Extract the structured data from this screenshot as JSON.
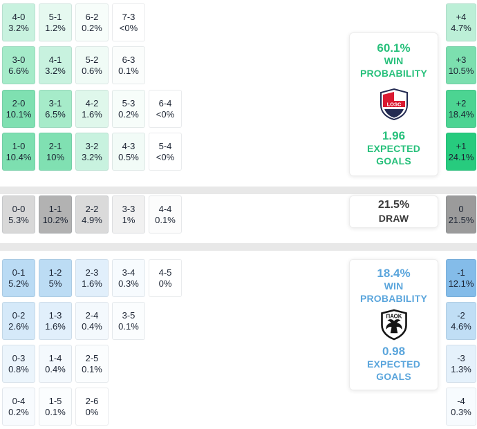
{
  "home": {
    "team": "Lille",
    "crest_text": "LOSC",
    "rows": [
      [
        {
          "score": "4-0",
          "pct": "3.2%",
          "bg": "#c8f2df"
        },
        {
          "score": "5-1",
          "pct": "1.2%",
          "bg": "#e6f9f0"
        },
        {
          "score": "6-2",
          "pct": "0.2%",
          "bg": "#f7fdfa"
        },
        {
          "score": "7-3",
          "pct": "<0%",
          "bg": "#ffffff"
        }
      ],
      [
        {
          "score": "3-0",
          "pct": "6.6%",
          "bg": "#a5ebc9"
        },
        {
          "score": "4-1",
          "pct": "3.2%",
          "bg": "#c8f2df"
        },
        {
          "score": "5-2",
          "pct": "0.6%",
          "bg": "#f0fbf6"
        },
        {
          "score": "6-3",
          "pct": "0.1%",
          "bg": "#fbfdfc"
        }
      ],
      [
        {
          "score": "2-0",
          "pct": "10.1%",
          "bg": "#7fe0b1"
        },
        {
          "score": "3-1",
          "pct": "6.5%",
          "bg": "#a6ebc9"
        },
        {
          "score": "4-2",
          "pct": "1.6%",
          "bg": "#dff7eb"
        },
        {
          "score": "5-3",
          "pct": "0.2%",
          "bg": "#f7fdfa"
        },
        {
          "score": "6-4",
          "pct": "<0%",
          "bg": "#ffffff"
        }
      ],
      [
        {
          "score": "1-0",
          "pct": "10.4%",
          "bg": "#7ddfb0"
        },
        {
          "score": "2-1",
          "pct": "10%",
          "bg": "#80e0b2"
        },
        {
          "score": "3-2",
          "pct": "3.2%",
          "bg": "#c8f2df"
        },
        {
          "score": "4-3",
          "pct": "0.5%",
          "bg": "#f2fbf7"
        },
        {
          "score": "5-4",
          "pct": "<0%",
          "bg": "#ffffff"
        }
      ]
    ],
    "diff": [
      {
        "label": "+4",
        "pct": "4.7%",
        "bg": "#bcefd7"
      },
      {
        "label": "+3",
        "pct": "10.5%",
        "bg": "#7cdfaf"
      },
      {
        "label": "+2",
        "pct": "18.4%",
        "bg": "#4cd492"
      },
      {
        "label": "+1",
        "pct": "24.1%",
        "bg": "#27cb7e"
      }
    ],
    "panel": {
      "win_pct": "60.1%",
      "win_label": "WIN PROBABILITY",
      "xg": "1.96",
      "xg_label": "EXPECTED GOALS",
      "accent": "#27c07b"
    }
  },
  "draw": {
    "cells": [
      {
        "score": "0-0",
        "pct": "5.3%",
        "bg": "#d8d8d8"
      },
      {
        "score": "1-1",
        "pct": "10.2%",
        "bg": "#b2b2b2"
      },
      {
        "score": "2-2",
        "pct": "4.9%",
        "bg": "#dadada"
      },
      {
        "score": "3-3",
        "pct": "1%",
        "bg": "#f1f1f1"
      },
      {
        "score": "4-4",
        "pct": "0.1%",
        "bg": "#fcfcfc"
      }
    ],
    "diff": {
      "label": "0",
      "pct": "21.5%",
      "bg": "#9b9b9b"
    },
    "panel": {
      "pct": "21.5%",
      "label": "DRAW",
      "accent": "#3a3a3a"
    }
  },
  "away": {
    "team": "PAOK",
    "crest_text": "ΠΑΟΚ",
    "rows": [
      [
        {
          "score": "0-1",
          "pct": "5.2%",
          "bg": "#badbf4"
        },
        {
          "score": "1-2",
          "pct": "5%",
          "bg": "#bcdcf4"
        },
        {
          "score": "2-3",
          "pct": "1.6%",
          "bg": "#e1effb"
        },
        {
          "score": "3-4",
          "pct": "0.3%",
          "bg": "#f7fbfe"
        },
        {
          "score": "4-5",
          "pct": "0%",
          "bg": "#ffffff"
        }
      ],
      [
        {
          "score": "0-2",
          "pct": "2.6%",
          "bg": "#d5e9f9"
        },
        {
          "score": "1-3",
          "pct": "1.6%",
          "bg": "#e1effb"
        },
        {
          "score": "2-4",
          "pct": "0.4%",
          "bg": "#f4f9fd"
        },
        {
          "score": "3-5",
          "pct": "0.1%",
          "bg": "#fbfdfe"
        }
      ],
      [
        {
          "score": "0-3",
          "pct": "0.8%",
          "bg": "#ecf5fc"
        },
        {
          "score": "1-4",
          "pct": "0.4%",
          "bg": "#f4f9fd"
        },
        {
          "score": "2-5",
          "pct": "0.1%",
          "bg": "#fbfdfe"
        }
      ],
      [
        {
          "score": "0-4",
          "pct": "0.2%",
          "bg": "#f8fbfe"
        },
        {
          "score": "1-5",
          "pct": "0.1%",
          "bg": "#fbfdfe"
        },
        {
          "score": "2-6",
          "pct": "0%",
          "bg": "#ffffff"
        }
      ]
    ],
    "diff": [
      {
        "label": "-1",
        "pct": "12.1%",
        "bg": "#84bce9"
      },
      {
        "label": "-2",
        "pct": "4.6%",
        "bg": "#c0def5"
      },
      {
        "label": "-3",
        "pct": "1.3%",
        "bg": "#e5f1fb"
      },
      {
        "label": "-4",
        "pct": "0.3%",
        "bg": "#f7fbfe"
      }
    ],
    "panel": {
      "win_pct": "18.4%",
      "win_label": "WIN PROBABILITY",
      "xg": "0.98",
      "xg_label": "EXPECTED GOALS",
      "accent": "#5aa5dc"
    }
  },
  "chart_data": {
    "type": "heatmap",
    "description": "Correct-score probability matrix with win/draw/loss summaries and goal-difference probabilities",
    "home_score_pct": {
      "4-0": 3.2,
      "5-1": 1.2,
      "6-2": 0.2,
      "7-3": "<0",
      "3-0": 6.6,
      "4-1": 3.2,
      "5-2": 0.6,
      "6-3": 0.1,
      "2-0": 10.1,
      "3-1": 6.5,
      "4-2": 1.6,
      "5-3": 0.2,
      "6-4": "<0",
      "1-0": 10.4,
      "2-1": 10,
      "3-2": 3.2,
      "4-3": 0.5,
      "5-4": "<0"
    },
    "draw_score_pct": {
      "0-0": 5.3,
      "1-1": 10.2,
      "2-2": 4.9,
      "3-3": 1,
      "4-4": 0.1
    },
    "away_score_pct": {
      "0-1": 5.2,
      "1-2": 5,
      "2-3": 1.6,
      "3-4": 0.3,
      "4-5": 0,
      "0-2": 2.6,
      "1-3": 1.6,
      "2-4": 0.4,
      "3-5": 0.1,
      "0-3": 0.8,
      "1-4": 0.4,
      "2-5": 0.1,
      "0-4": 0.2,
      "1-5": 0.1,
      "2-6": 0
    },
    "goal_difference_pct": {
      "+4": 4.7,
      "+3": 10.5,
      "+2": 18.4,
      "+1": 24.1,
      "0": 21.5,
      "-1": 12.1,
      "-2": 4.6,
      "-3": 1.3,
      "-4": 0.3
    },
    "outcomes_pct": {
      "home_win": 60.1,
      "draw": 21.5,
      "away_win": 18.4
    },
    "expected_goals": {
      "home": 1.96,
      "away": 0.98
    }
  }
}
